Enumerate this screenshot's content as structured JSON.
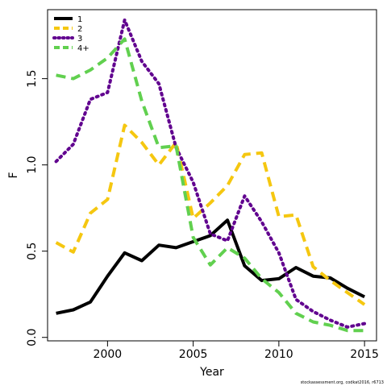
{
  "chart_data": {
    "type": "line",
    "title": "",
    "xlabel": "Year",
    "ylabel": "F",
    "xlim": [
      1996.5,
      2015.7
    ],
    "ylim": [
      -0.02,
      1.9
    ],
    "x_ticks": [
      2000,
      2005,
      2010,
      2015
    ],
    "x_tick_labels": [
      "2000",
      "2005",
      "2010",
      "2015"
    ],
    "y_ticks": [
      0.0,
      0.5,
      1.0,
      1.5
    ],
    "y_tick_labels": [
      "0.0",
      "0.5",
      "1.0",
      "1.5"
    ],
    "grid": false,
    "legend_position": "top-left",
    "x": [
      1997,
      1998,
      1999,
      2000,
      2001,
      2002,
      2003,
      2004,
      2005,
      2006,
      2007,
      2008,
      2009,
      2010,
      2011,
      2012,
      2013,
      2014,
      2015
    ],
    "series": [
      {
        "name": "1",
        "color": "#000000",
        "dash": "solid",
        "values": [
          0.14,
          0.16,
          0.205,
          0.355,
          0.49,
          0.445,
          0.535,
          0.52,
          0.555,
          0.59,
          0.68,
          0.415,
          0.33,
          0.34,
          0.405,
          0.355,
          0.345,
          0.285,
          0.235
        ]
      },
      {
        "name": "2",
        "color": "#F5C710",
        "dash": "dashed",
        "values": [
          0.55,
          0.495,
          0.72,
          0.8,
          1.23,
          1.13,
          1.0,
          1.13,
          0.69,
          0.78,
          0.88,
          1.06,
          1.07,
          0.7,
          0.71,
          0.41,
          0.33,
          0.26,
          0.19
        ]
      },
      {
        "name": "3",
        "color": "#61008F",
        "dash": "dotted",
        "values": [
          1.02,
          1.12,
          1.38,
          1.42,
          1.84,
          1.6,
          1.47,
          1.1,
          0.9,
          0.6,
          0.56,
          0.82,
          0.67,
          0.49,
          0.22,
          0.15,
          0.1,
          0.06,
          0.08
        ]
      },
      {
        "name": "4+",
        "color": "#61D04F",
        "dash": "dashed",
        "values": [
          1.52,
          1.5,
          1.55,
          1.62,
          1.73,
          1.37,
          1.1,
          1.11,
          0.58,
          0.42,
          0.52,
          0.46,
          0.34,
          0.26,
          0.14,
          0.09,
          0.07,
          0.04,
          0.04
        ]
      }
    ]
  },
  "credit": "stockassessment.org, codkat2016, r6713"
}
